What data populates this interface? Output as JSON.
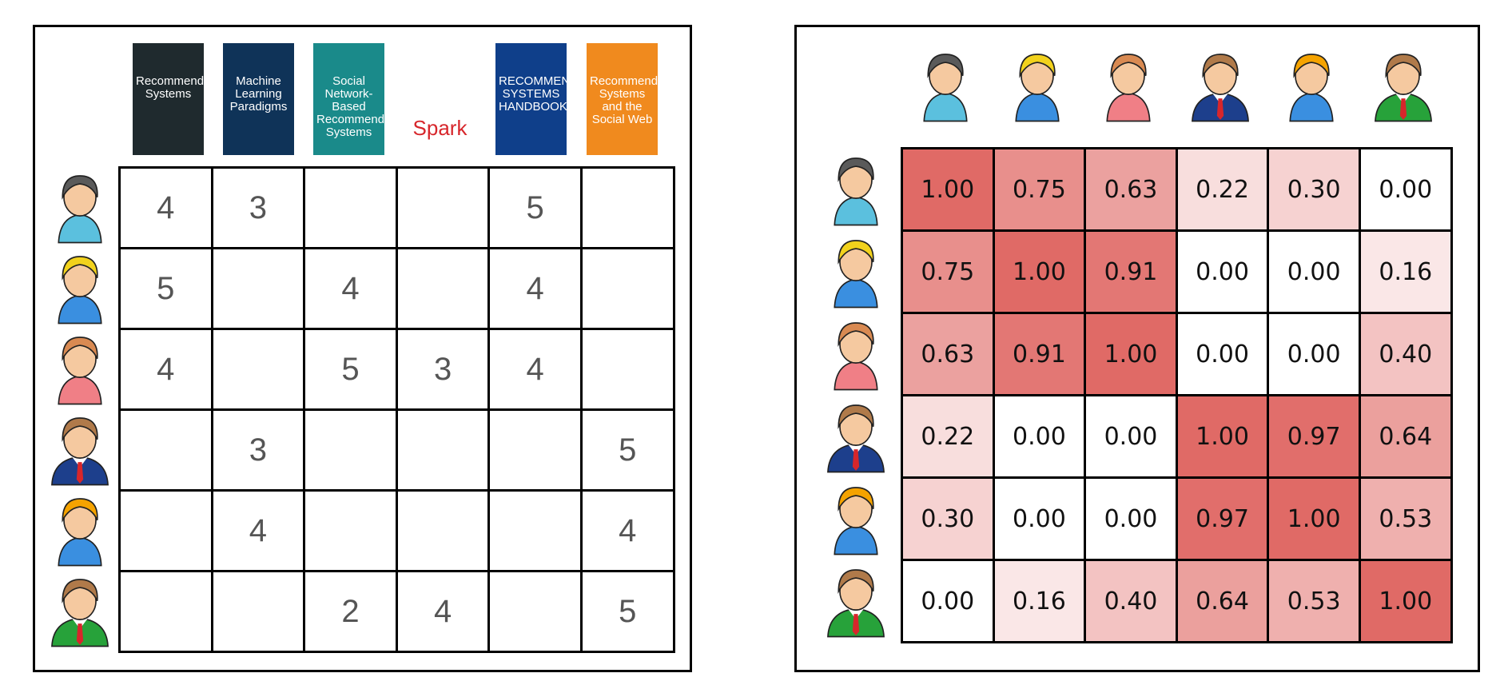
{
  "users": [
    {
      "name": "user-gray-hair-woman",
      "hair": "#5a5a5a",
      "shirt": "#5bc0de",
      "tie": null
    },
    {
      "name": "user-blonde-boy",
      "hair": "#f2d21c",
      "shirt": "#3a8fe0",
      "tie": null
    },
    {
      "name": "user-auburn-woman",
      "hair": "#d98a52",
      "shirt": "#f07f86",
      "tie": null
    },
    {
      "name": "user-businessman-blue",
      "hair": "#b07a4a",
      "shirt": "#1d3f8c",
      "tie": "#d7262b"
    },
    {
      "name": "user-orange-hair-woman",
      "hair": "#f5a300",
      "shirt": "#3a8fe0",
      "tie": null
    },
    {
      "name": "user-businessman-green",
      "hair": "#b07a4a",
      "shirt": "#27a23a",
      "tie": "#d7262b"
    }
  ],
  "books": [
    {
      "name": "book-recommender-systems",
      "title": "Recommender Systems",
      "bg": "#1f2a2e",
      "fg": "#ffffff"
    },
    {
      "name": "book-machine-learning-paradigms",
      "title": "Machine Learning Paradigms",
      "bg": "#0f3358",
      "fg": "#ffffff"
    },
    {
      "name": "book-social-network-based-recommender-systems",
      "title": "Social Network-Based Recommender Systems",
      "bg": "#1a8a8a",
      "fg": "#ffffff"
    },
    {
      "name": "book-learning-spark",
      "title": "Spark",
      "bg": "#ffffff",
      "fg": "#d7262b"
    },
    {
      "name": "book-recommender-systems-handbook",
      "title": "RECOMMENDER SYSTEMS HANDBOOK",
      "bg": "#0f3f8a",
      "fg": "#ffffff"
    },
    {
      "name": "book-recommender-systems-social-web",
      "title": "Recommender Systems and the Social Web",
      "bg": "#f08a1e",
      "fg": "#ffffff"
    }
  ],
  "ratings": [
    [
      "4",
      "3",
      "",
      "",
      "5",
      ""
    ],
    [
      "5",
      "",
      "4",
      "",
      "4",
      ""
    ],
    [
      "4",
      "",
      "5",
      "3",
      "4",
      ""
    ],
    [
      "",
      "3",
      "",
      "",
      "",
      "5"
    ],
    [
      "",
      "4",
      "",
      "",
      "",
      "4"
    ],
    [
      "",
      "",
      "2",
      "4",
      "",
      "5"
    ]
  ],
  "similarity": [
    [
      "1.00",
      "0.75",
      "0.63",
      "0.22",
      "0.30",
      "0.00"
    ],
    [
      "0.75",
      "1.00",
      "0.91",
      "0.00",
      "0.00",
      "0.16"
    ],
    [
      "0.63",
      "0.91",
      "1.00",
      "0.00",
      "0.00",
      "0.40"
    ],
    [
      "0.22",
      "0.00",
      "0.00",
      "1.00",
      "0.97",
      "0.64"
    ],
    [
      "0.30",
      "0.00",
      "0.00",
      "0.97",
      "1.00",
      "0.53"
    ],
    [
      "0.00",
      "0.16",
      "0.40",
      "0.64",
      "0.53",
      "1.00"
    ]
  ],
  "heat_color": "#e06a66",
  "skin_color": "#f5c9a0"
}
